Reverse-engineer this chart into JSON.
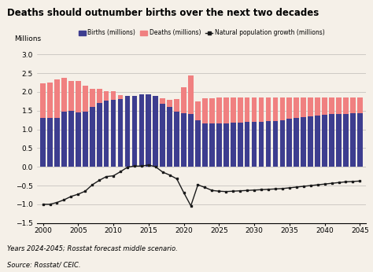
{
  "title": "Deaths should outnumber births over the next two decades",
  "ylabel_text": "Millions",
  "ylim": [
    -1.5,
    3.0
  ],
  "yticks": [
    -1.5,
    -1.0,
    -0.5,
    0.0,
    0.5,
    1.0,
    1.5,
    2.0,
    2.5,
    3.0
  ],
  "background_color": "#f5f0e8",
  "bar_color_births": "#3d3d8f",
  "bar_color_deaths": "#f08080",
  "line_color": "#1a1a1a",
  "footnote1": "Years 2024-2045; Rosstat forecast middle scenario.",
  "footnote2": "Source: Rosstat/ CEIC.",
  "years": [
    2000,
    2001,
    2002,
    2003,
    2004,
    2005,
    2006,
    2007,
    2008,
    2009,
    2010,
    2011,
    2012,
    2013,
    2014,
    2015,
    2016,
    2017,
    2018,
    2019,
    2020,
    2021,
    2022,
    2023,
    2024,
    2025,
    2026,
    2027,
    2028,
    2029,
    2030,
    2031,
    2032,
    2033,
    2034,
    2035,
    2036,
    2037,
    2038,
    2039,
    2040,
    2041,
    2042,
    2043,
    2044,
    2045
  ],
  "births": [
    1.3,
    1.31,
    1.3,
    1.48,
    1.5,
    1.46,
    1.48,
    1.6,
    1.71,
    1.76,
    1.79,
    1.8,
    1.9,
    1.9,
    1.94,
    1.94,
    1.89,
    1.69,
    1.6,
    1.48,
    1.44,
    1.4,
    1.25,
    1.15,
    1.15,
    1.15,
    1.16,
    1.17,
    1.18,
    1.19,
    1.2,
    1.21,
    1.22,
    1.22,
    1.25,
    1.28,
    1.3,
    1.32,
    1.34,
    1.36,
    1.38,
    1.4,
    1.41,
    1.42,
    1.43,
    1.44
  ],
  "deaths": [
    2.22,
    2.25,
    2.33,
    2.37,
    2.3,
    2.3,
    2.17,
    2.08,
    2.08,
    2.01,
    2.02,
    1.92,
    1.9,
    1.9,
    1.91,
    1.88,
    1.89,
    1.82,
    1.79,
    1.8,
    2.12,
    2.43,
    1.75,
    1.83,
    1.83,
    1.84,
    1.84,
    1.84,
    1.84,
    1.84,
    1.84,
    1.84,
    1.84,
    1.84,
    1.84,
    1.84,
    1.84,
    1.84,
    1.84,
    1.84,
    1.84,
    1.84,
    1.84,
    1.84,
    1.84,
    1.84
  ],
  "nat_growth": [
    -1.0,
    -1.0,
    -0.95,
    -0.88,
    -0.79,
    -0.73,
    -0.65,
    -0.48,
    -0.36,
    -0.26,
    -0.24,
    -0.13,
    -0.01,
    0.02,
    0.02,
    0.05,
    0.0,
    -0.14,
    -0.22,
    -0.32,
    -0.69,
    -1.04,
    -0.48,
    -0.55,
    -0.63,
    -0.65,
    -0.66,
    -0.65,
    -0.64,
    -0.63,
    -0.62,
    -0.61,
    -0.6,
    -0.59,
    -0.58,
    -0.56,
    -0.54,
    -0.52,
    -0.5,
    -0.48,
    -0.46,
    -0.44,
    -0.42,
    -0.4,
    -0.39,
    -0.38
  ]
}
